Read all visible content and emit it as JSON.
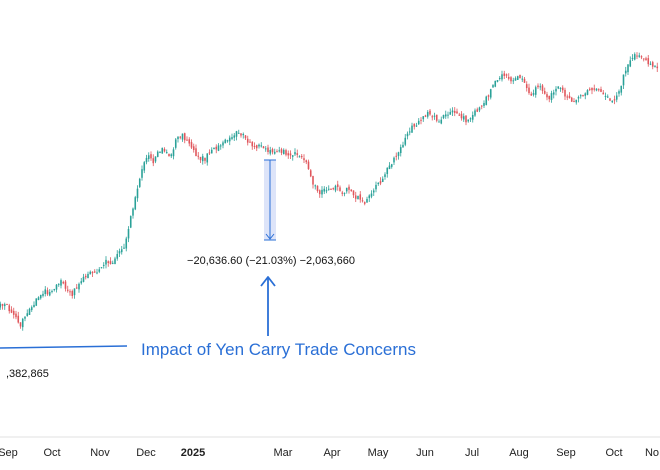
{
  "chart_data": {
    "type": "candlestick",
    "title": "",
    "x_axis_labels": [
      "Sep",
      "Oct",
      "Nov",
      "Dec",
      "2025",
      "Mar",
      "Apr",
      "May",
      "Jun",
      "Jul",
      "Aug",
      "Sep",
      "Oct",
      "No"
    ],
    "bold_labels": [
      "2025"
    ],
    "ylim": [
      1270000,
      2380000
    ],
    "up_color": "#2aa198",
    "down_color": "#e0565c",
    "accent_color": "#2a6fd6",
    "series_closes": [
      1400000,
      1420000,
      1395000,
      1370000,
      1340000,
      1385000,
      1410000,
      1440000,
      1462000,
      1450000,
      1478000,
      1495000,
      1470000,
      1450000,
      1480000,
      1505000,
      1530000,
      1520000,
      1548000,
      1570000,
      1555000,
      1590000,
      1610000,
      1700000,
      1800000,
      1880000,
      1940000,
      1910000,
      1960000,
      1955000,
      1930000,
      1990000,
      2010000,
      1990000,
      1955000,
      1930000,
      1925000,
      1948000,
      1965000,
      1985000,
      2000000,
      2010000,
      2025000,
      2000000,
      1985000,
      1965000,
      1970000,
      1955000,
      1945000,
      1960000,
      1950000,
      1945000,
      1940000,
      1935000,
      1900000,
      1840000,
      1800000,
      1820000,
      1810000,
      1835000,
      1795000,
      1820000,
      1800000,
      1785000,
      1770000,
      1800000,
      1830000,
      1855000,
      1890000,
      1925000,
      1960000,
      1990000,
      2030000,
      2050000,
      2070000,
      2085000,
      2075000,
      2060000,
      2080000,
      2100000,
      2090000,
      2070000,
      2060000,
      2085000,
      2110000,
      2130000,
      2170000,
      2200000,
      2230000,
      2210000,
      2200000,
      2215000,
      2185000,
      2155000,
      2180000,
      2170000,
      2140000,
      2160000,
      2185000,
      2150000,
      2125000,
      2140000,
      2155000,
      2165000,
      2170000,
      2175000,
      2150000,
      2120000,
      2145000,
      2210000,
      2270000,
      2300000,
      2280000,
      2275000,
      2260000,
      2250000
    ],
    "annotations": {
      "arrow_label": "Impact of Yen Carry Trade Concerns",
      "measure_label": "−20,636.60 (−21.03%) −2,063,660",
      "price_label": ",382,865"
    }
  }
}
